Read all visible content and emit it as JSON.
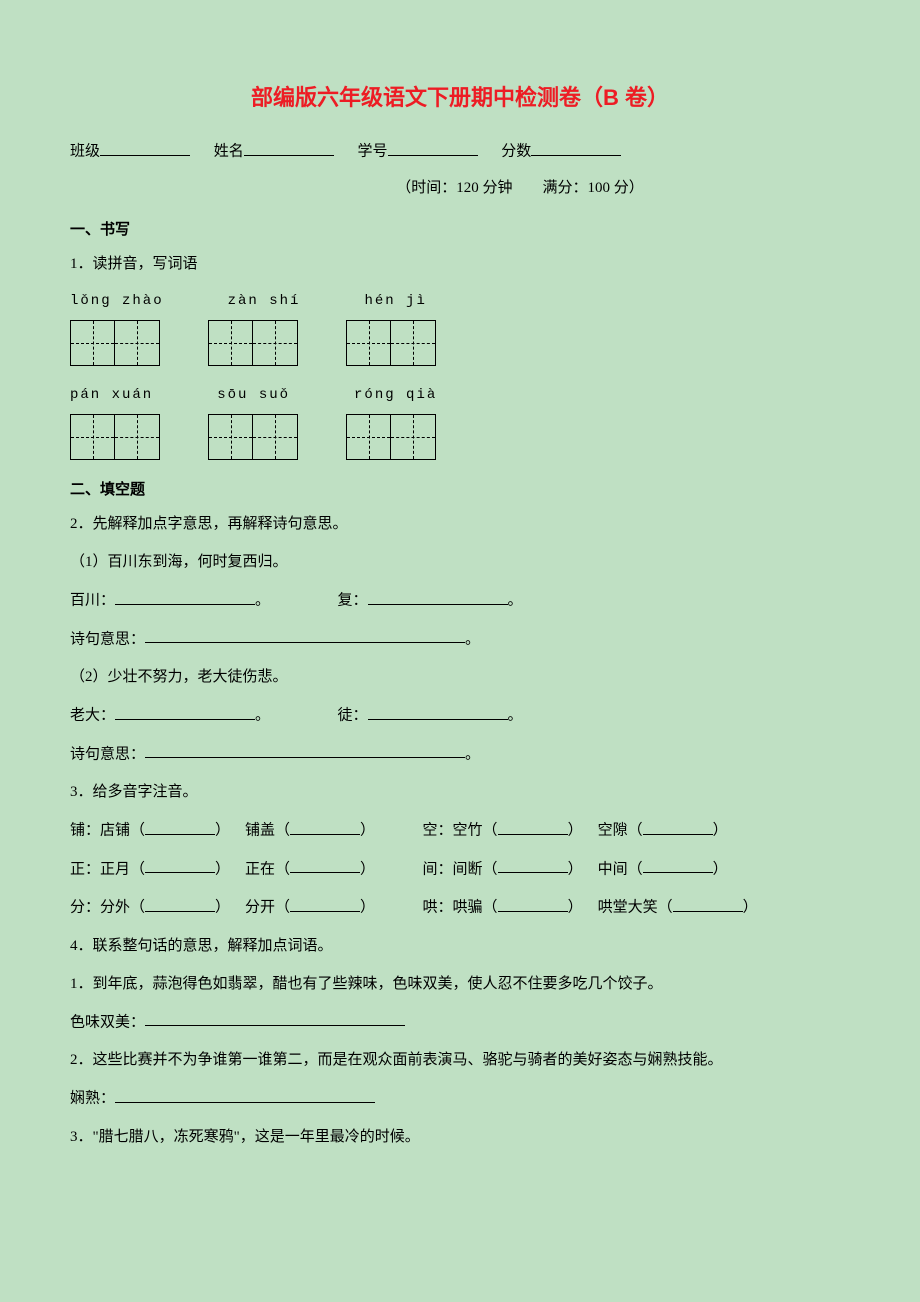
{
  "title": "部编版六年级语文下册期中检测卷（B 卷）",
  "header": {
    "class_label": "班级",
    "name_label": "姓名",
    "id_label": "学号",
    "score_label": "分数"
  },
  "time_row": "（时间：120 分钟  满分：100 分）",
  "s1": {
    "head": "一、书写",
    "q1": "1．读拼音，写词语",
    "row1": {
      "p1": "lǒng zhào",
      "p2": "zàn shí",
      "p3": "hén jì"
    },
    "row2": {
      "p1": "pán xuán",
      "p2": "sōu suǒ",
      "p3": "róng qià"
    }
  },
  "s2": {
    "head": "二、填空题",
    "q2": "2．先解释加点字意思，再解释诗句意思。",
    "q2_1": "（1）百川东到海，何时复西归。",
    "q2_1a_l": "百川：",
    "q2_1a_end": "。",
    "q2_1b_l": "复：",
    "q2_1b_end": "。",
    "q2_1c_l": "诗句意思：",
    "q2_1c_end": "。",
    "q2_2": "（2）少壮不努力，老大徒伤悲。",
    "q2_2a_l": "老大：",
    "q2_2a_end": "。",
    "q2_2b_l": "徒：",
    "q2_2b_end": "。",
    "q2_2c_l": "诗句意思：",
    "q2_2c_end": "。",
    "q3": "3．给多音字注音。",
    "q3_l1": {
      "a1": "铺：店铺（",
      "a2": "） 铺盖（",
      "a3": "）",
      "b1": "空：空竹（",
      "b2": "） 空隙（",
      "b3": "）"
    },
    "q3_l2": {
      "a1": "正：正月（",
      "a2": "） 正在（",
      "a3": "）",
      "b1": "间：间断（",
      "b2": "） 中间（",
      "b3": "）"
    },
    "q3_l3": {
      "a1": "分：分外（",
      "a2": "） 分开（",
      "a3": "）",
      "b1": "哄：哄骗（",
      "b2": "） 哄堂大笑（",
      "b3": "）"
    },
    "q4": "4．联系整句话的意思，解释加点词语。",
    "q4_1": "1．到年底，蒜泡得色如翡翠，醋也有了些辣味，色味双美，使人忍不住要多吃几个饺子。",
    "q4_1a": "色味双美：",
    "q4_2": "2．这些比赛并不为争谁第一谁第二，而是在观众面前表演马、骆驼与骑者的美好姿态与娴熟技能。",
    "q4_2a": "娴熟：",
    "q4_3": "3．\"腊七腊八，冻死寒鸦\"，这是一年里最冷的时候。"
  }
}
